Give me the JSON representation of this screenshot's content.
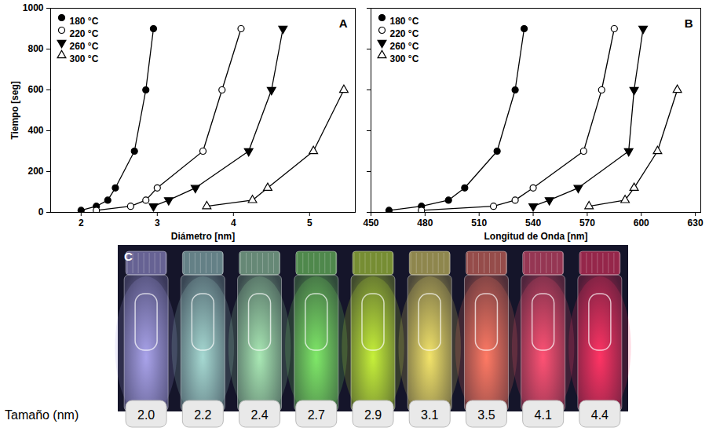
{
  "chart_data": [
    {
      "type": "line",
      "panel_label": "A",
      "x_label": "Diámetro [nm]",
      "y_label": "Tiempo [seg]",
      "xlim": [
        1.6,
        5.6
      ],
      "xticks": [
        2,
        3,
        4,
        5
      ],
      "ylim": [
        0,
        1000
      ],
      "yticks": [
        0,
        200,
        400,
        600,
        800,
        1000
      ],
      "legend": "top-left",
      "series": [
        {
          "name": "180 °C",
          "color": "#000000",
          "marker": "circle",
          "x": [
            2.0,
            2.2,
            2.35,
            2.45,
            2.7,
            2.85,
            2.95
          ],
          "values": [
            10,
            30,
            60,
            120,
            300,
            600,
            900
          ]
        },
        {
          "name": "220 °C",
          "color": "#000000",
          "marker": "circle_open",
          "x": [
            2.2,
            2.65,
            2.85,
            3.0,
            3.6,
            3.85,
            4.1
          ],
          "values": [
            10,
            30,
            60,
            120,
            300,
            600,
            900
          ]
        },
        {
          "name": "260 °C",
          "color": "#000000",
          "marker": "triangle_down",
          "x": [
            2.95,
            3.15,
            3.5,
            4.2,
            4.5,
            4.65
          ],
          "values": [
            30,
            60,
            120,
            300,
            600,
            900
          ]
        },
        {
          "name": "300 °C",
          "color": "#000000",
          "marker": "triangle_open",
          "x": [
            3.65,
            4.25,
            4.45,
            5.05,
            5.45
          ],
          "values": [
            30,
            60,
            120,
            300,
            600
          ]
        }
      ]
    },
    {
      "type": "line",
      "panel_label": "B",
      "x_label": "Longitud de Onda [nm]",
      "xlim": [
        450,
        633
      ],
      "xticks": [
        450,
        480,
        510,
        540,
        570,
        600,
        630
      ],
      "ylim": [
        0,
        1000
      ],
      "yticks": [
        0,
        200,
        400,
        600,
        800,
        1000
      ],
      "legend": "top-left",
      "tick_labels": "x",
      "series": [
        {
          "name": "180 °C",
          "color": "#000000",
          "marker": "circle",
          "x": [
            460,
            478,
            493,
            502,
            520,
            530,
            535
          ],
          "values": [
            10,
            30,
            60,
            120,
            300,
            600,
            900
          ]
        },
        {
          "name": "220 °C",
          "color": "#000000",
          "marker": "circle_open",
          "x": [
            478,
            518,
            530,
            540,
            568,
            578,
            585
          ],
          "values": [
            10,
            30,
            60,
            120,
            300,
            600,
            900
          ]
        },
        {
          "name": "260 °C",
          "color": "#000000",
          "marker": "triangle_down",
          "x": [
            540,
            549,
            565,
            593,
            596,
            601
          ],
          "values": [
            30,
            60,
            120,
            300,
            600,
            900
          ]
        },
        {
          "name": "300 °C",
          "color": "#000000",
          "marker": "triangle_open",
          "x": [
            571,
            591,
            596,
            609,
            620
          ],
          "values": [
            30,
            60,
            120,
            300,
            600
          ]
        }
      ]
    }
  ],
  "panel_c": {
    "panel_label": "C",
    "label": "Tamaño (nm)",
    "sizes": [
      "2.0",
      "2.2",
      "2.4",
      "2.7",
      "2.9",
      "3.1",
      "3.5",
      "4.1",
      "4.4"
    ],
    "colors": [
      "#a9a3ea",
      "#a6d9d2",
      "#a9e8b4",
      "#7fe868",
      "#c6f03a",
      "#f2e36a",
      "#ff7a64",
      "#ff5274",
      "#ff3464"
    ]
  }
}
